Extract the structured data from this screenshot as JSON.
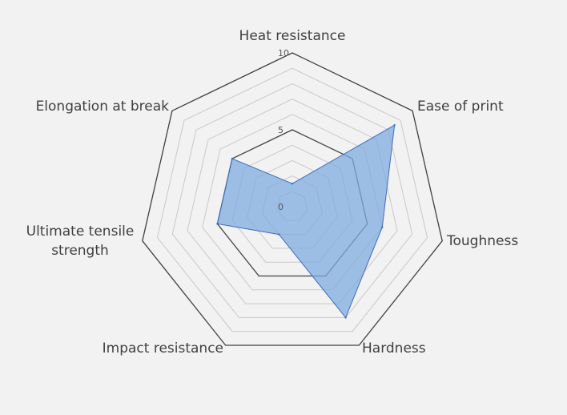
{
  "chart_data": {
    "type": "radar",
    "title": "",
    "axes": [
      "Heat resistance",
      "Ease of print",
      "Toughness",
      "Hardness",
      "Impact resistance",
      "Ultimate tensile strength",
      "Elongation at break"
    ],
    "range": [
      0,
      10
    ],
    "major_ticks": [
      0,
      5,
      10
    ],
    "minor_step": 1,
    "grid": true,
    "series": [
      {
        "values": [
          1.5,
          8.5,
          6,
          8,
          2,
          5,
          5
        ]
      }
    ],
    "colors": {
      "series_fill": "#7facdf",
      "series_stroke": "#3f6cbf",
      "grid_major": "#404040",
      "grid_minor": "#c8c8c8",
      "background": "#f2f2f2"
    }
  }
}
